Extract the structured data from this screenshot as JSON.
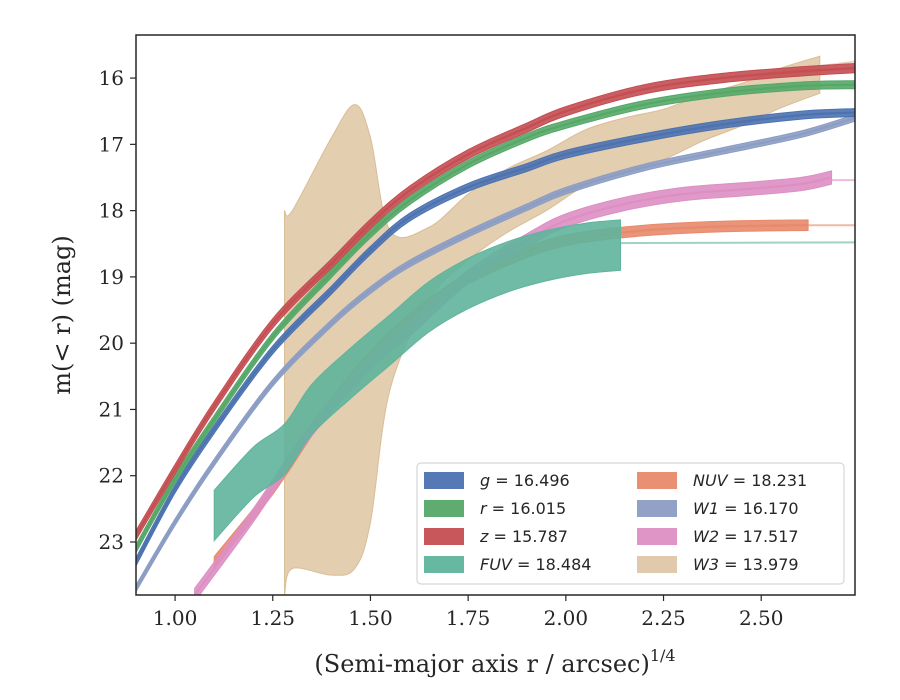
{
  "chart_data": {
    "type": "line",
    "title": "",
    "xlabel": "(Semi-major axis r / arcsec)",
    "xlabel_exponent": "1/4",
    "ylabel": "m(< r) (mag)",
    "xlim": [
      0.9,
      2.74
    ],
    "ylim": [
      23.8,
      15.35
    ],
    "y_inverted": true,
    "grid": false,
    "legend_position": "lower-right",
    "xticks": [
      "1.00",
      "1.25",
      "1.50",
      "1.75",
      "2.00",
      "2.25",
      "2.50"
    ],
    "xtick_values": [
      1.0,
      1.25,
      1.5,
      1.75,
      2.0,
      2.25,
      2.5
    ],
    "yticks": [
      "16",
      "17",
      "18",
      "19",
      "20",
      "21",
      "22",
      "23"
    ],
    "ytick_values": [
      16,
      17,
      18,
      19,
      20,
      21,
      22,
      23
    ],
    "series": [
      {
        "name": "g = 16.496",
        "var": "g",
        "total": "16.496",
        "color": "#4c72b0",
        "x": [
          0.9,
          1.0,
          1.1,
          1.25,
          1.4,
          1.5,
          1.6,
          1.75,
          1.9,
          2.0,
          2.2,
          2.4,
          2.6,
          2.74
        ],
        "y": [
          23.3,
          22.2,
          21.3,
          20.1,
          19.2,
          18.6,
          18.1,
          17.65,
          17.35,
          17.15,
          16.9,
          16.7,
          16.56,
          16.52
        ],
        "halfwidth": 0.06,
        "ext_x": [],
        "ext_y": []
      },
      {
        "name": "r = 16.015",
        "var": "r",
        "total": "16.015",
        "color": "#55a868",
        "x": [
          0.9,
          1.0,
          1.1,
          1.25,
          1.4,
          1.5,
          1.6,
          1.75,
          1.9,
          2.0,
          2.2,
          2.4,
          2.6,
          2.74
        ],
        "y": [
          23.1,
          22.05,
          21.15,
          19.9,
          18.95,
          18.35,
          17.85,
          17.3,
          16.9,
          16.7,
          16.4,
          16.22,
          16.12,
          16.1
        ],
        "halfwidth": 0.06,
        "ext_x": [],
        "ext_y": []
      },
      {
        "name": "z = 15.787",
        "var": "z",
        "total": "15.787",
        "color": "#c44e52",
        "x": [
          0.9,
          1.0,
          1.1,
          1.25,
          1.4,
          1.5,
          1.6,
          1.75,
          1.9,
          2.0,
          2.2,
          2.4,
          2.6,
          2.74
        ],
        "y": [
          22.9,
          21.9,
          20.95,
          19.7,
          18.8,
          18.2,
          17.7,
          17.15,
          16.75,
          16.5,
          16.17,
          16.0,
          15.9,
          15.85
        ],
        "halfwidth": 0.07,
        "ext_x": [],
        "ext_y": []
      },
      {
        "name": "FUV = 18.484",
        "var": "FUV",
        "total": "18.484",
        "color": "#5fb49c",
        "x": [
          1.1,
          1.2,
          1.28,
          1.35,
          1.45,
          1.55,
          1.65,
          1.75,
          1.85,
          1.95,
          2.05,
          2.14
        ],
        "y": [
          22.6,
          21.95,
          21.6,
          21.0,
          20.45,
          19.95,
          19.45,
          19.1,
          18.85,
          18.68,
          18.57,
          18.52
        ],
        "halfwidth": 0.38,
        "ext_x": [
          2.14,
          2.74
        ],
        "ext_y": [
          18.49,
          18.48
        ]
      },
      {
        "name": "NUV = 18.231",
        "var": "NUV",
        "total": "18.231",
        "color": "#e8896b",
        "x": [
          1.1,
          1.25,
          1.4,
          1.55,
          1.7,
          1.85,
          2.0,
          2.2,
          2.4,
          2.62
        ],
        "y": [
          23.3,
          22.2,
          20.9,
          19.9,
          19.2,
          18.75,
          18.45,
          18.3,
          18.24,
          18.22
        ],
        "halfwidth": 0.08,
        "ext_x": [
          2.62,
          2.74
        ],
        "ext_y": [
          18.22,
          18.22
        ]
      },
      {
        "name": "W1 = 16.170",
        "var": "W1",
        "total": "16.170",
        "color": "#8c9dc4",
        "x": [
          0.9,
          1.0,
          1.1,
          1.25,
          1.4,
          1.5,
          1.6,
          1.75,
          1.9,
          2.0,
          2.2,
          2.4,
          2.6,
          2.74
        ],
        "y": [
          23.7,
          22.7,
          21.8,
          20.6,
          19.7,
          19.2,
          18.8,
          18.35,
          17.95,
          17.7,
          17.35,
          17.1,
          16.85,
          16.6
        ],
        "halfwidth": 0.05,
        "ext_x": [],
        "ext_y": []
      },
      {
        "name": "W2 = 17.517",
        "var": "W2",
        "total": "17.517",
        "color": "#dd8fc3",
        "x": [
          1.05,
          1.2,
          1.35,
          1.5,
          1.6,
          1.75,
          1.9,
          2.0,
          2.15,
          2.3,
          2.45,
          2.6,
          2.68
        ],
        "y": [
          23.8,
          22.6,
          21.3,
          20.3,
          19.8,
          19.0,
          18.45,
          18.15,
          17.9,
          17.75,
          17.68,
          17.6,
          17.5
        ],
        "halfwidth": 0.1,
        "ext_x": [
          2.68,
          2.74
        ],
        "ext_y": [
          17.54,
          17.54
        ]
      },
      {
        "name": "W3 = 13.979",
        "var": "W3",
        "total": "13.979",
        "color": "#d9bd96",
        "x": [
          1.28,
          1.3,
          1.4,
          1.46,
          1.5,
          1.55,
          1.65,
          1.75,
          1.85,
          1.95,
          2.05,
          2.15,
          2.25,
          2.35,
          2.45,
          2.55,
          2.65
        ],
        "y": [
          20.9,
          20.7,
          20.2,
          19.9,
          19.8,
          19.5,
          18.8,
          18.25,
          17.85,
          17.55,
          17.2,
          17.0,
          16.85,
          16.6,
          16.4,
          16.15,
          15.95
        ],
        "halfwidth": [
          2.9,
          2.7,
          3.3,
          3.5,
          2.9,
          1.2,
          0.55,
          0.5,
          0.48,
          0.45,
          0.42,
          0.4,
          0.38,
          0.35,
          0.32,
          0.3,
          0.28
        ],
        "ext_x": [
          2.65,
          2.74
        ],
        "ext_y": [
          15.82,
          15.75
        ]
      }
    ]
  }
}
